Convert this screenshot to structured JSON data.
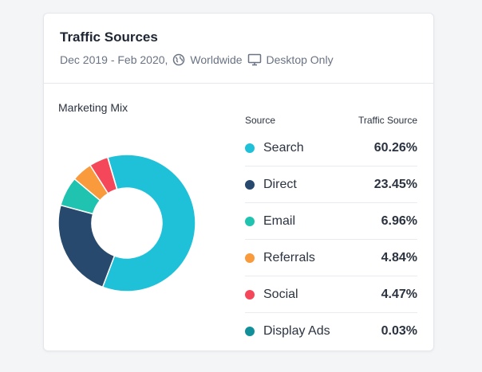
{
  "card": {
    "title": "Traffic Sources",
    "date_range": "Dec 2019 - Feb 2020,",
    "region": "Worldwide",
    "device": "Desktop Only",
    "region_icon": "globe-icon",
    "device_icon": "monitor-icon"
  },
  "section_label": "Marketing Mix",
  "legend": {
    "col_source": "Source",
    "col_traffic": "Traffic Source"
  },
  "chart_data": {
    "type": "pie",
    "donut": true,
    "title": "Marketing Mix",
    "slices": [
      {
        "label": "Search",
        "value": 60.26,
        "display": "60.26%",
        "color": "#1fc1d9"
      },
      {
        "label": "Direct",
        "value": 23.45,
        "display": "23.45%",
        "color": "#27496d"
      },
      {
        "label": "Email",
        "value": 6.96,
        "display": "6.96%",
        "color": "#20c3b0"
      },
      {
        "label": "Referrals",
        "value": 4.84,
        "display": "4.84%",
        "color": "#f99a3c"
      },
      {
        "label": "Social",
        "value": 4.47,
        "display": "4.47%",
        "color": "#f5475a"
      },
      {
        "label": "Display Ads",
        "value": 0.03,
        "display": "0.03%",
        "color": "#11909a"
      }
    ]
  }
}
